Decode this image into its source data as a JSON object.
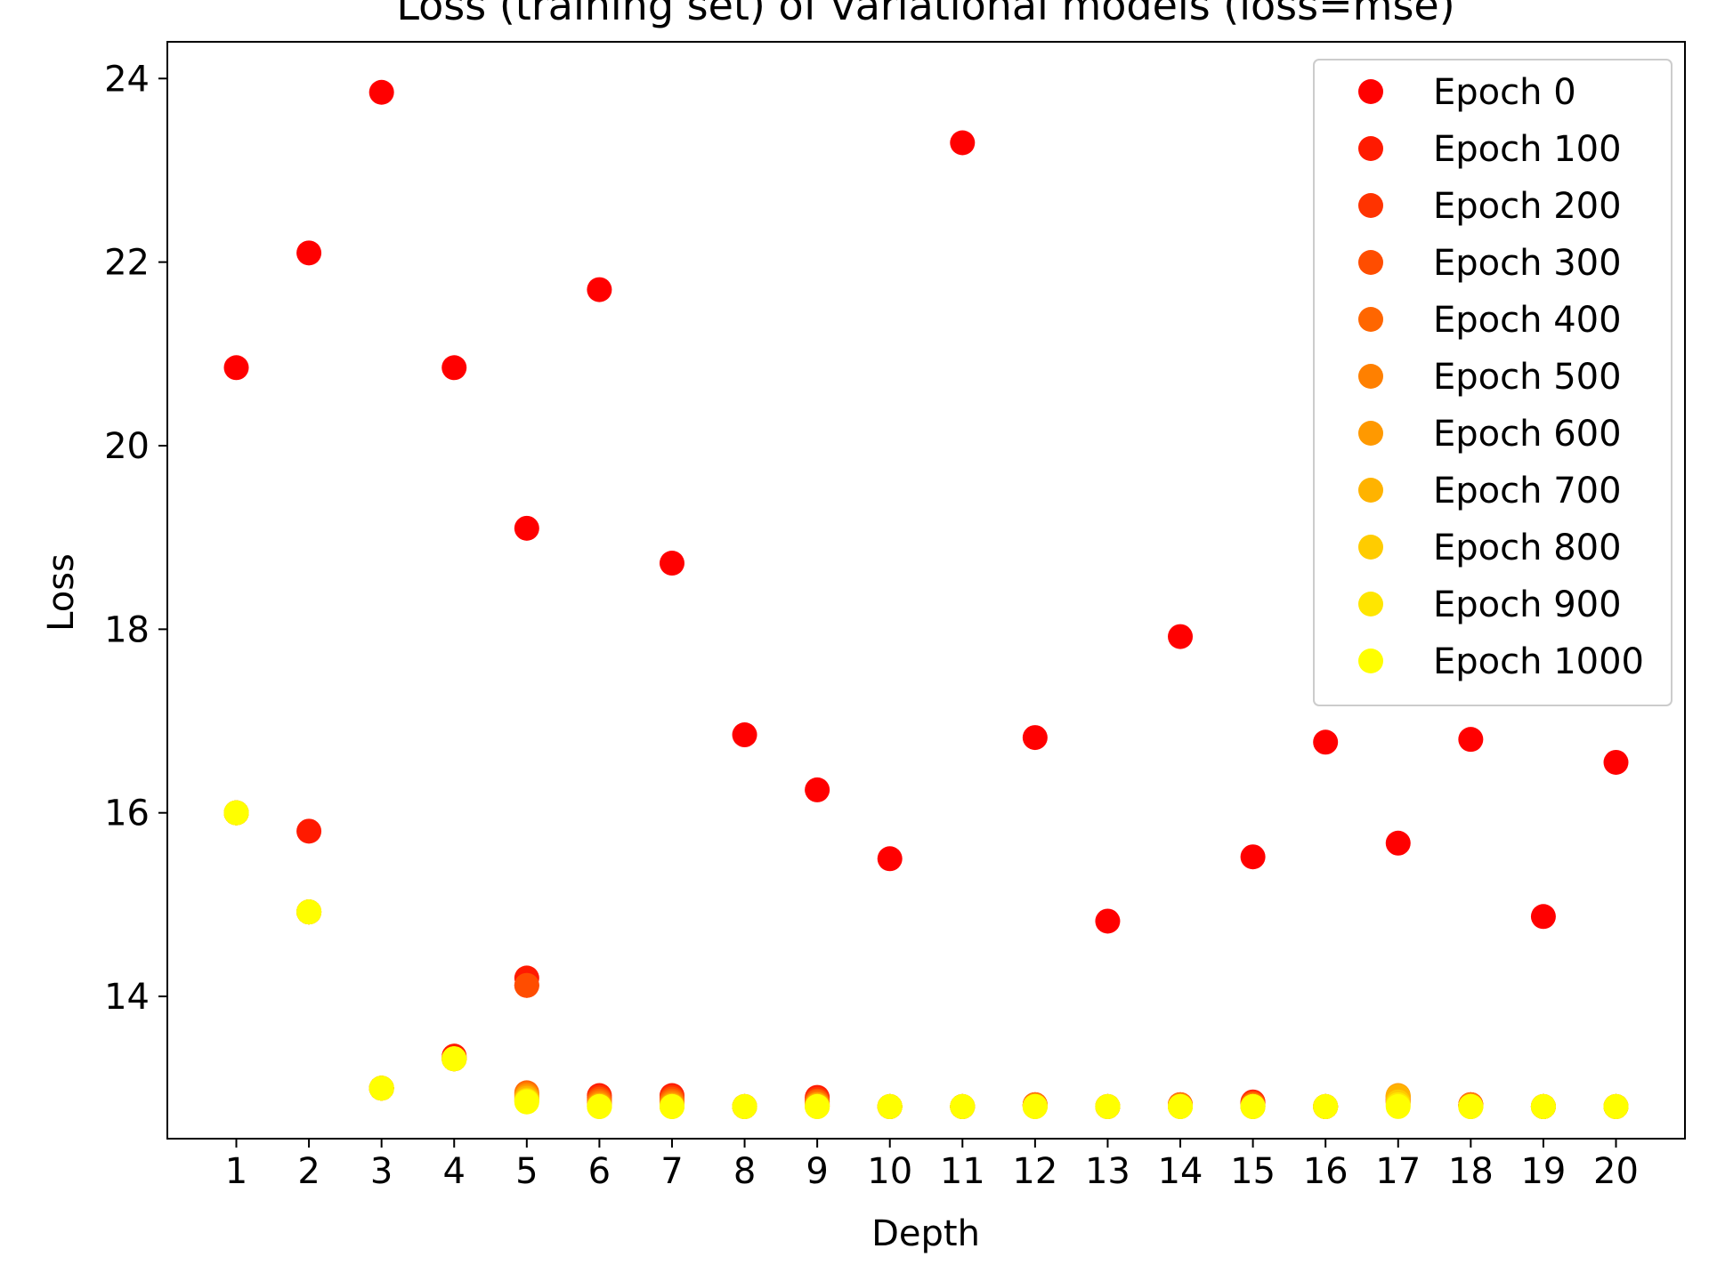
{
  "chart_data": {
    "type": "scatter",
    "title": "Loss (training set) of variational models (loss=mse)",
    "xlabel": "Depth",
    "ylabel": "Loss",
    "x": [
      1,
      2,
      3,
      4,
      5,
      6,
      7,
      8,
      9,
      10,
      11,
      12,
      13,
      14,
      15,
      16,
      17,
      18,
      19,
      20
    ],
    "xlim": [
      0.05,
      20.95
    ],
    "ylim": [
      12.45,
      24.4
    ],
    "yticks": [
      14,
      16,
      18,
      20,
      22,
      24
    ],
    "xticks": [
      1,
      2,
      3,
      4,
      5,
      6,
      7,
      8,
      9,
      10,
      11,
      12,
      13,
      14,
      15,
      16,
      17,
      18,
      19,
      20
    ],
    "grid": false,
    "legend_position": "top-right",
    "series": [
      {
        "name": "Epoch 0",
        "color": "#ff0000",
        "values": [
          20.85,
          22.1,
          23.85,
          20.85,
          19.1,
          21.7,
          18.72,
          16.85,
          16.25,
          15.5,
          23.3,
          16.82,
          14.82,
          17.92,
          15.52,
          16.77,
          15.67,
          16.8,
          14.87,
          16.55
        ]
      },
      {
        "name": "Epoch 100",
        "color": "#ff1a00",
        "values": [
          16.0,
          15.8,
          13.0,
          13.35,
          14.2,
          12.92,
          12.92,
          12.8,
          12.9,
          12.8,
          12.8,
          12.82,
          12.8,
          12.82,
          12.85,
          12.8,
          12.85,
          12.82,
          12.8,
          12.8
        ]
      },
      {
        "name": "Epoch 200",
        "color": "#ff3300",
        "values": [
          16.0,
          14.92,
          13.0,
          13.32,
          14.12,
          12.9,
          12.9,
          12.8,
          12.88,
          12.8,
          12.8,
          12.82,
          12.8,
          12.82,
          12.84,
          12.8,
          12.87,
          12.82,
          12.8,
          12.8
        ]
      },
      {
        "name": "Epoch 300",
        "color": "#ff4d00",
        "values": [
          16.0,
          14.92,
          13.0,
          13.32,
          14.12,
          12.88,
          12.88,
          12.8,
          12.86,
          12.8,
          12.8,
          12.82,
          12.8,
          12.82,
          12.83,
          12.8,
          12.88,
          12.82,
          12.8,
          12.8
        ]
      },
      {
        "name": "Epoch 400",
        "color": "#ff6600",
        "values": [
          16.0,
          14.92,
          13.0,
          13.32,
          12.95,
          12.86,
          12.86,
          12.8,
          12.85,
          12.8,
          12.8,
          12.82,
          12.8,
          12.82,
          12.82,
          12.8,
          12.9,
          12.82,
          12.8,
          12.8
        ]
      },
      {
        "name": "Epoch 500",
        "color": "#ff8000",
        "values": [
          16.0,
          14.92,
          13.0,
          13.32,
          12.93,
          12.84,
          12.84,
          12.8,
          12.83,
          12.8,
          12.8,
          12.81,
          12.8,
          12.81,
          12.81,
          12.8,
          12.91,
          12.81,
          12.8,
          12.8
        ]
      },
      {
        "name": "Epoch 600",
        "color": "#ff9900",
        "values": [
          16.0,
          14.92,
          13.0,
          13.32,
          12.91,
          12.82,
          12.82,
          12.8,
          12.82,
          12.8,
          12.8,
          12.81,
          12.8,
          12.81,
          12.8,
          12.8,
          12.92,
          12.81,
          12.8,
          12.8
        ]
      },
      {
        "name": "Epoch 700",
        "color": "#ffb300",
        "values": [
          16.0,
          14.92,
          13.0,
          13.32,
          12.89,
          12.81,
          12.81,
          12.8,
          12.81,
          12.8,
          12.8,
          12.8,
          12.8,
          12.8,
          12.8,
          12.8,
          12.91,
          12.8,
          12.8,
          12.8
        ]
      },
      {
        "name": "Epoch 800",
        "color": "#ffcc00",
        "values": [
          16.0,
          14.92,
          13.0,
          13.32,
          12.87,
          12.8,
          12.8,
          12.8,
          12.8,
          12.8,
          12.8,
          12.8,
          12.8,
          12.8,
          12.8,
          12.8,
          12.85,
          12.8,
          12.8,
          12.8
        ]
      },
      {
        "name": "Epoch 900",
        "color": "#ffe600",
        "values": [
          16.0,
          14.92,
          13.0,
          13.32,
          12.86,
          12.8,
          12.8,
          12.8,
          12.8,
          12.8,
          12.8,
          12.8,
          12.8,
          12.8,
          12.8,
          12.8,
          12.82,
          12.8,
          12.8,
          12.8
        ]
      },
      {
        "name": "Epoch 1000",
        "color": "#ffff00",
        "values": [
          16.0,
          14.92,
          13.0,
          13.32,
          12.85,
          12.8,
          12.8,
          12.8,
          12.8,
          12.8,
          12.8,
          12.8,
          12.8,
          12.8,
          12.8,
          12.8,
          12.8,
          12.8,
          12.8,
          12.8
        ]
      }
    ]
  }
}
